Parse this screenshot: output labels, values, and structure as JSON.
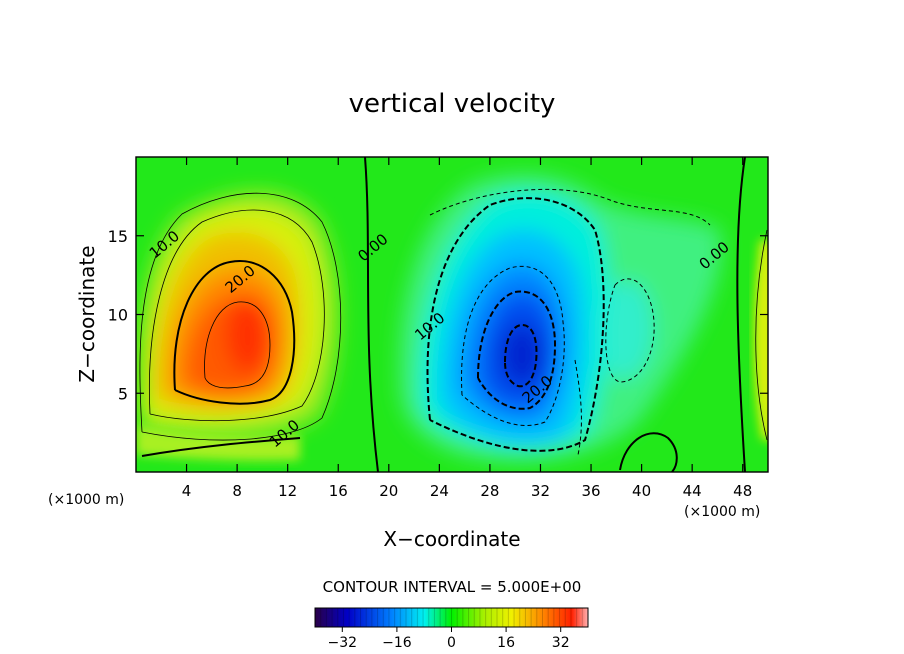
{
  "chart_data": {
    "type": "heatmap",
    "title": "vertical velocity",
    "xlabel": "X−coordinate",
    "ylabel": "Z−coordinate",
    "x_unit_left": "(×1000 m)",
    "x_unit_right": "(×1000 m)",
    "xlim": [
      0,
      50
    ],
    "ylim": [
      0,
      20
    ],
    "x_ticks": [
      4,
      8,
      12,
      16,
      20,
      24,
      28,
      32,
      36,
      40,
      44,
      48
    ],
    "y_ticks": [
      5,
      10,
      15
    ],
    "contour_interval_text": "CONTOUR INTERVAL = 5.000E+00",
    "colorbar_ticks": [
      -32,
      -16,
      0,
      16,
      32
    ],
    "colorbar_range": [
      -40,
      40
    ],
    "contour_labels": [
      {
        "text": "10.0",
        "x": 2.5,
        "y": 14.2
      },
      {
        "text": "20.0",
        "x": 8.5,
        "y": 12.0
      },
      {
        "text": "10.0",
        "x": 12.0,
        "y": 2.2
      },
      {
        "text": "0.00",
        "x": 19.0,
        "y": 14.0
      },
      {
        "text": "10.0",
        "x": 23.5,
        "y": 9.0
      },
      {
        "text": "20.0",
        "x": 32.0,
        "y": 5.0
      },
      {
        "text": "0.00",
        "x": 46.0,
        "y": 13.5
      }
    ],
    "features": [
      {
        "sign": "positive",
        "peak_value": 30,
        "center_x": 9.0,
        "center_z": 8.5
      },
      {
        "sign": "negative",
        "peak_value": -35,
        "center_x": 30.5,
        "center_z": 7.5
      }
    ]
  }
}
